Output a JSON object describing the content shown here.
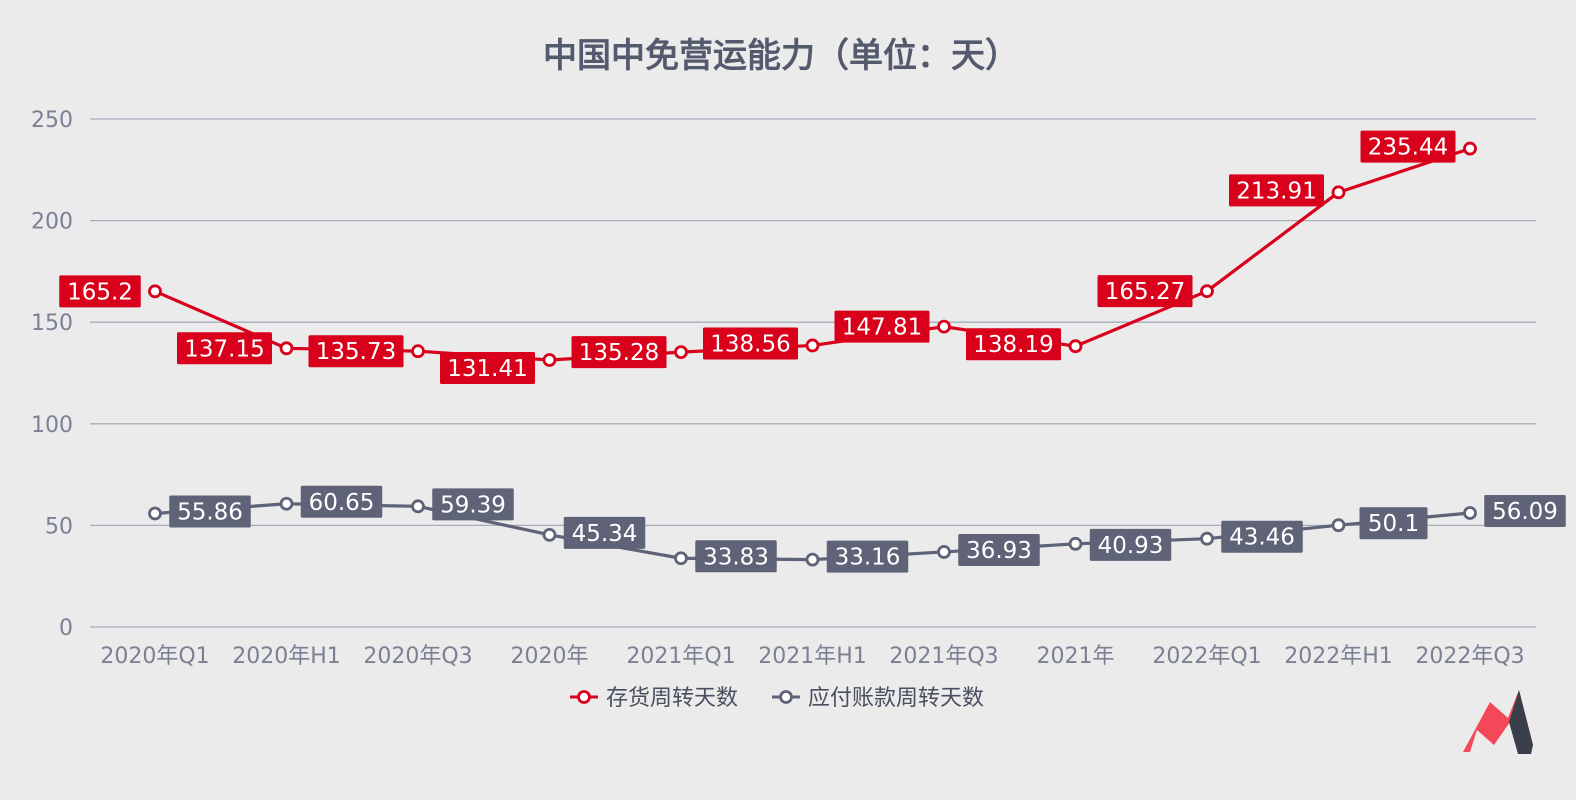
{
  "chart_data": {
    "type": "line",
    "title": "中国中免营运能力（单位：天）",
    "xlabel": "",
    "ylabel": "",
    "categories": [
      "2020年Q1",
      "2020年H1",
      "2020年Q3",
      "2020年",
      "2021年Q1",
      "2021年H1",
      "2021年Q3",
      "2021年",
      "2022年Q1",
      "2022年H1",
      "2022年Q3"
    ],
    "ylim": [
      0,
      250
    ],
    "yticks": [
      0,
      50,
      100,
      150,
      200,
      250
    ],
    "grid": true,
    "legend_position": "bottom",
    "series": [
      {
        "name": "存货周转天数",
        "color": "#d9001b",
        "values": [
          165.2,
          137.15,
          135.73,
          131.41,
          135.28,
          138.56,
          147.81,
          138.19,
          165.27,
          213.91,
          235.44
        ]
      },
      {
        "name": "应付账款周转天数",
        "color": "#5f6378",
        "values": [
          55.86,
          60.65,
          59.39,
          45.34,
          33.83,
          33.16,
          36.93,
          40.93,
          43.46,
          50.1,
          56.09
        ]
      }
    ]
  },
  "logo": {
    "name": "brand-logo",
    "colors": [
      "#f5475a",
      "#3a3d4a"
    ]
  }
}
